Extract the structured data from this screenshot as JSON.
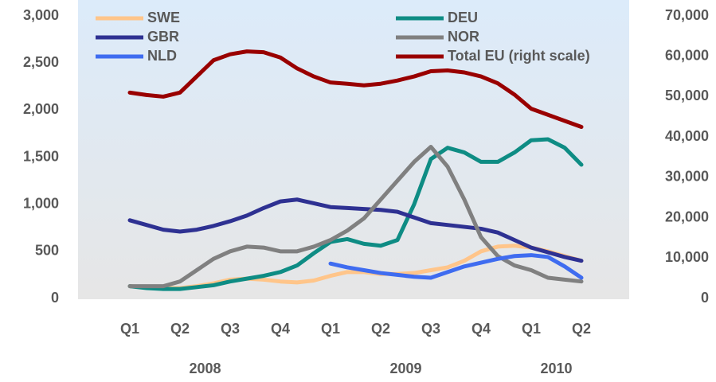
{
  "chart_data": {
    "type": "line",
    "categories": [
      "Q1",
      null,
      null,
      "Q2",
      null,
      null,
      "Q3",
      null,
      null,
      "Q4",
      null,
      null,
      "Q1",
      null,
      null,
      "Q2",
      null,
      null,
      "Q3",
      null,
      null,
      "Q4",
      null,
      null,
      "Q1",
      null,
      null,
      "Q2"
    ],
    "years": [
      "2008",
      "2009",
      "2010"
    ],
    "series": [
      {
        "name": "SWE",
        "color": "#FFC58A",
        "values": [
          130,
          120,
          110,
          110,
          130,
          160,
          200,
          210,
          200,
          180,
          170,
          190,
          240,
          280,
          280,
          260,
          260,
          270,
          300,
          330,
          400,
          500,
          550,
          560,
          540,
          500,
          450,
          400
        ]
      },
      {
        "name": "DEU",
        "color": "#0E8C84",
        "values": [
          130,
          110,
          100,
          100,
          120,
          140,
          180,
          210,
          240,
          280,
          350,
          480,
          600,
          630,
          580,
          560,
          620,
          1000,
          1480,
          1600,
          1550,
          1450,
          1450,
          1550,
          1680,
          1690,
          1600,
          1420
        ]
      },
      {
        "name": "GBR",
        "color": "#2E3192",
        "values": [
          830,
          780,
          730,
          710,
          730,
          770,
          820,
          880,
          960,
          1030,
          1050,
          1010,
          970,
          960,
          950,
          940,
          920,
          860,
          800,
          780,
          760,
          740,
          700,
          620,
          540,
          490,
          440,
          400
        ]
      },
      {
        "name": "NOR",
        "color": "#808080",
        "values": [
          130,
          130,
          130,
          180,
          300,
          420,
          500,
          550,
          540,
          500,
          500,
          550,
          620,
          720,
          850,
          1050,
          1250,
          1450,
          1610,
          1400,
          1050,
          650,
          450,
          350,
          300,
          220,
          200,
          180
        ]
      },
      {
        "name": "NLD",
        "color": "#3F6CF0",
        "values": [
          null,
          null,
          null,
          null,
          null,
          null,
          null,
          null,
          null,
          null,
          null,
          null,
          370,
          330,
          300,
          270,
          250,
          230,
          220,
          280,
          340,
          380,
          420,
          450,
          460,
          440,
          340,
          220
        ]
      },
      {
        "name": "Total EU (right scale)",
        "color": "#990000",
        "axis": "y2",
        "values": [
          51000,
          50400,
          50000,
          51000,
          55000,
          59000,
          60500,
          61200,
          61000,
          59700,
          57000,
          55000,
          53500,
          53200,
          52800,
          53200,
          54000,
          55000,
          56300,
          56500,
          56000,
          55000,
          53300,
          50500,
          47000,
          45500,
          44000,
          42500
        ]
      }
    ],
    "ylim": [
      0,
      3000
    ],
    "yticks": [
      0,
      500,
      {
        "value": 1000,
        "label": "1,000"
      },
      {
        "value": 1500,
        "label": "1,500"
      },
      {
        "value": 2000,
        "label": "2,000"
      },
      {
        "value": 2500,
        "label": "2,500"
      },
      {
        "value": 3000,
        "label": "3,000"
      }
    ],
    "y2lim": [
      0,
      70000
    ],
    "y2ticks": [
      0,
      {
        "value": 10000,
        "label": "10,000"
      },
      {
        "value": 20000,
        "label": "20,000"
      },
      {
        "value": 30000,
        "label": "30,000"
      },
      {
        "value": 40000,
        "label": "40,000"
      },
      {
        "value": 50000,
        "label": "50,000"
      },
      {
        "value": 60000,
        "label": "60,000"
      },
      {
        "value": 70000,
        "label": "70,000"
      }
    ],
    "grid": false
  }
}
